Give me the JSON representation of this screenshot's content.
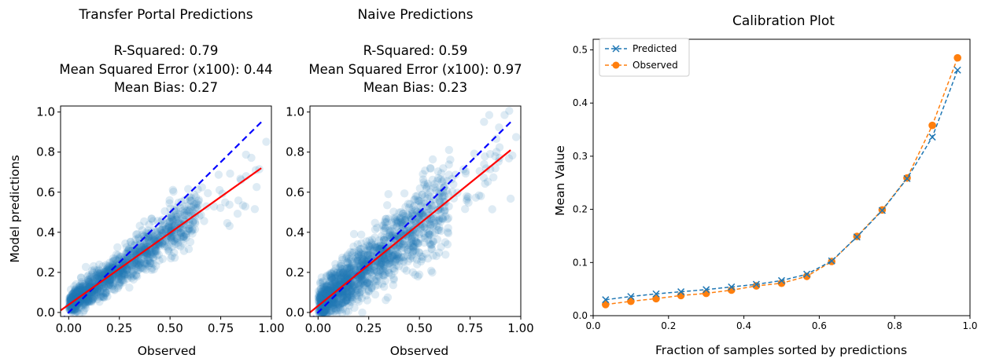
{
  "chart_data": [
    {
      "type": "scatter",
      "title": "Transfer Portal Predictions",
      "stats": [
        "R-Squared: 0.79",
        "Mean Squared Error (x100): 0.44",
        "Mean Bias: 0.27"
      ],
      "xlabel": "Observed",
      "ylabel": "Model predictions",
      "xlim": [
        -0.04,
        1.0
      ],
      "ylim": [
        -0.02,
        1.03
      ],
      "xticks": [
        "0.00",
        "0.25",
        "0.50",
        "0.75",
        "1.00"
      ],
      "yticks": [
        "0.0",
        "0.2",
        "0.4",
        "0.6",
        "0.8",
        "1.0"
      ],
      "point_color": "#1f77b4",
      "identity_line": {
        "color": "#0000ff",
        "style": "dashed",
        "x": [
          -0.04,
          0.95
        ],
        "y": [
          -0.04,
          0.95
        ]
      },
      "fit_line": {
        "color": "#ff0000",
        "x": [
          -0.04,
          0.95
        ],
        "y": [
          0.01,
          0.72
        ]
      },
      "scatter_summary": {
        "spread": 0.055,
        "slope_to_fit": 1.0,
        "n_points": 1300
      }
    },
    {
      "type": "scatter",
      "title": "Naive Predictions",
      "stats": [
        "R-Squared: 0.59",
        "Mean Squared Error (x100): 0.97",
        "Mean Bias: 0.23"
      ],
      "xlabel": "Observed",
      "ylabel": "",
      "xlim": [
        -0.04,
        1.0
      ],
      "ylim": [
        -0.02,
        1.03
      ],
      "xticks": [
        "0.00",
        "0.25",
        "0.50",
        "0.75",
        "1.00"
      ],
      "yticks": [
        "0.0",
        "0.2",
        "0.4",
        "0.6",
        "0.8",
        "1.0"
      ],
      "point_color": "#1f77b4",
      "identity_line": {
        "color": "#0000ff",
        "style": "dashed",
        "x": [
          -0.04,
          0.95
        ],
        "y": [
          -0.04,
          0.95
        ]
      },
      "fit_line": {
        "color": "#ff0000",
        "x": [
          -0.04,
          0.95
        ],
        "y": [
          0.0,
          0.81
        ]
      },
      "scatter_summary": {
        "spread": 0.09,
        "slope_to_fit": 1.0,
        "n_points": 1500
      }
    },
    {
      "type": "line",
      "title": "Calibration Plot",
      "xlabel": "Fraction of samples sorted by predictions",
      "ylabel": "Mean Value",
      "xlim": [
        0.0,
        1.0
      ],
      "ylim": [
        0.0,
        0.52
      ],
      "xticks": [
        "0.0",
        "0.2",
        "0.4",
        "0.6",
        "0.8",
        "1.0"
      ],
      "yticks": [
        "0.0",
        "0.1",
        "0.2",
        "0.3",
        "0.4",
        "0.5"
      ],
      "legend": "top-left",
      "x": [
        0.033,
        0.1,
        0.167,
        0.233,
        0.3,
        0.367,
        0.433,
        0.5,
        0.567,
        0.633,
        0.7,
        0.767,
        0.833,
        0.9,
        0.967
      ],
      "series": [
        {
          "name": "Predicted",
          "color": "#1f77b4",
          "marker": "x",
          "style": "dashed",
          "values": [
            0.03,
            0.036,
            0.041,
            0.045,
            0.049,
            0.054,
            0.059,
            0.066,
            0.078,
            0.103,
            0.148,
            0.198,
            0.258,
            0.336,
            0.462
          ]
        },
        {
          "name": "Observed",
          "color": "#ff7f0e",
          "marker": "o",
          "style": "dashed",
          "values": [
            0.021,
            0.027,
            0.032,
            0.038,
            0.042,
            0.048,
            0.056,
            0.061,
            0.074,
            0.102,
            0.149,
            0.199,
            0.259,
            0.358,
            0.485
          ]
        }
      ]
    }
  ]
}
